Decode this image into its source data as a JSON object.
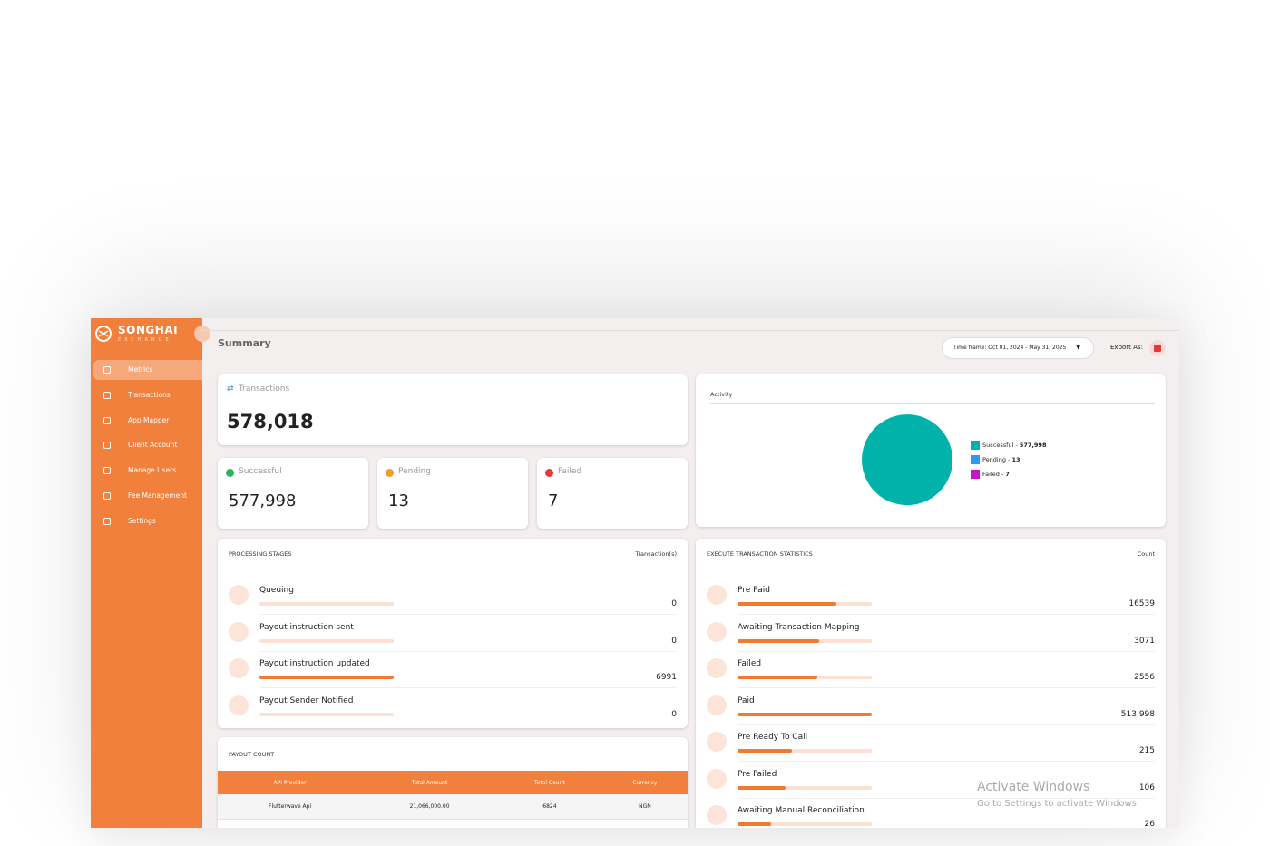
{
  "sidebar": {
    "brand": "SONGHAI",
    "brand_sub": "EXCHANGE",
    "nav": [
      "Metrics",
      "Transactions",
      "App Mapper",
      "Client Account",
      "Manage Users",
      "Fee Management",
      "Settings"
    ]
  },
  "header": {
    "title": "Summary",
    "time_frame": "Time frame: Oct 01, 2024 - May 31, 2025",
    "export_label": "Export As:"
  },
  "transactions": {
    "label": "Transactions",
    "total": "578,018"
  },
  "activity": {
    "title": "Activity",
    "type": "pie",
    "slices": [
      {
        "name": "Successful",
        "value": 577998,
        "value_label": "577,998",
        "color": "#00b2a9"
      },
      {
        "name": "Pending",
        "value": 13,
        "color": "#3399ee"
      },
      {
        "name": "Failed",
        "value": 7,
        "color": "#c413c8"
      }
    ]
  },
  "processing_stages": {
    "title": "PROCESSING STAGES",
    "column": "Transaction(s)",
    "rows": [
      {
        "label": "Queuing",
        "count": 0
      },
      {
        "label": "Payout instruction sent",
        "count": 0
      },
      {
        "label": "Payout instruction updated",
        "count": 6991
      },
      {
        "label": "Payout Sender Notified",
        "count": 0
      }
    ]
  },
  "execute_statistics": {
    "title": "EXECUTE TRANSACTION STATISTICS",
    "column": "Count",
    "scale": "log",
    "rows": [
      {
        "label": "Pre Paid",
        "count": 16539
      },
      {
        "label": "Awaiting Transaction Mapping",
        "count": 3071
      },
      {
        "label": "Failed",
        "count": 2556
      },
      {
        "label": "Paid",
        "count": 513998,
        "count_label": "513,998"
      },
      {
        "label": "Pre Ready To Call",
        "count": 215
      },
      {
        "label": "Pre Failed",
        "count": 106
      },
      {
        "label": "Awaiting Manual Reconciliation",
        "count": 26
      }
    ]
  },
  "payout_count": {
    "title": "PAYOUT COUNT",
    "columns": [
      "API Provider",
      "Total Amount",
      "Total Count",
      "Currency"
    ],
    "rows": [
      [
        "Flutterwave Api",
        "21,066,000.00",
        "6824",
        "NGN"
      ]
    ]
  },
  "watermark": {
    "title": "Activate Windows",
    "subtitle": "Go to Settings to activate Windows."
  }
}
